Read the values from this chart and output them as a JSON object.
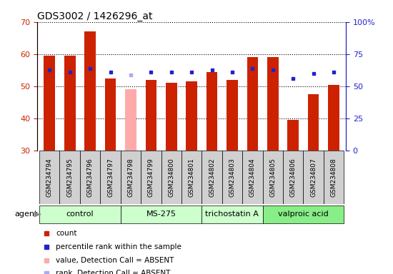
{
  "title": "GDS3002 / 1426296_at",
  "categories": [
    "GSM234794",
    "GSM234795",
    "GSM234796",
    "GSM234797",
    "GSM234798",
    "GSM234799",
    "GSM234800",
    "GSM234801",
    "GSM234802",
    "GSM234803",
    "GSM234804",
    "GSM234805",
    "GSM234806",
    "GSM234807",
    "GSM234808"
  ],
  "bar_values": [
    59.5,
    59.5,
    67.0,
    52.5,
    49.0,
    52.0,
    51.0,
    51.5,
    54.5,
    52.0,
    59.0,
    59.0,
    39.5,
    47.5,
    50.5
  ],
  "bar_colors": [
    "#cc2200",
    "#cc2200",
    "#cc2200",
    "#cc2200",
    "#ffaaaa",
    "#cc2200",
    "#cc2200",
    "#cc2200",
    "#cc2200",
    "#cc2200",
    "#cc2200",
    "#cc2200",
    "#cc2200",
    "#cc2200",
    "#cc2200"
  ],
  "dot_values": [
    55.0,
    54.5,
    55.5,
    54.5,
    53.5,
    54.5,
    54.5,
    54.5,
    55.0,
    54.5,
    55.5,
    55.0,
    52.5,
    54.0,
    54.5
  ],
  "dot_colors": [
    "#2222cc",
    "#2222cc",
    "#2222cc",
    "#2222cc",
    "#aaaaee",
    "#2222cc",
    "#2222cc",
    "#2222cc",
    "#2222cc",
    "#2222cc",
    "#2222cc",
    "#2222cc",
    "#2222cc",
    "#2222cc",
    "#2222cc"
  ],
  "ymin": 30,
  "ymax": 70,
  "y2min": 0,
  "y2max": 100,
  "yticks": [
    30,
    40,
    50,
    60,
    70
  ],
  "y2ticks": [
    0,
    25,
    50,
    75,
    100
  ],
  "groups": [
    {
      "label": "control",
      "start": 0,
      "end": 3,
      "color": "#ccffcc"
    },
    {
      "label": "MS-275",
      "start": 4,
      "end": 7,
      "color": "#ccffcc"
    },
    {
      "label": "trichostatin A",
      "start": 8,
      "end": 10,
      "color": "#ccffcc"
    },
    {
      "label": "valproic acid",
      "start": 11,
      "end": 14,
      "color": "#88ee88"
    }
  ],
  "legend_items": [
    {
      "label": "count",
      "color": "#cc2200"
    },
    {
      "label": "percentile rank within the sample",
      "color": "#2222cc"
    },
    {
      "label": "value, Detection Call = ABSENT",
      "color": "#ffaaaa"
    },
    {
      "label": "rank, Detection Call = ABSENT",
      "color": "#aaaaee"
    }
  ],
  "bar_width": 0.55,
  "tick_label_color_left": "#cc2200",
  "tick_label_color_right": "#2222cc"
}
